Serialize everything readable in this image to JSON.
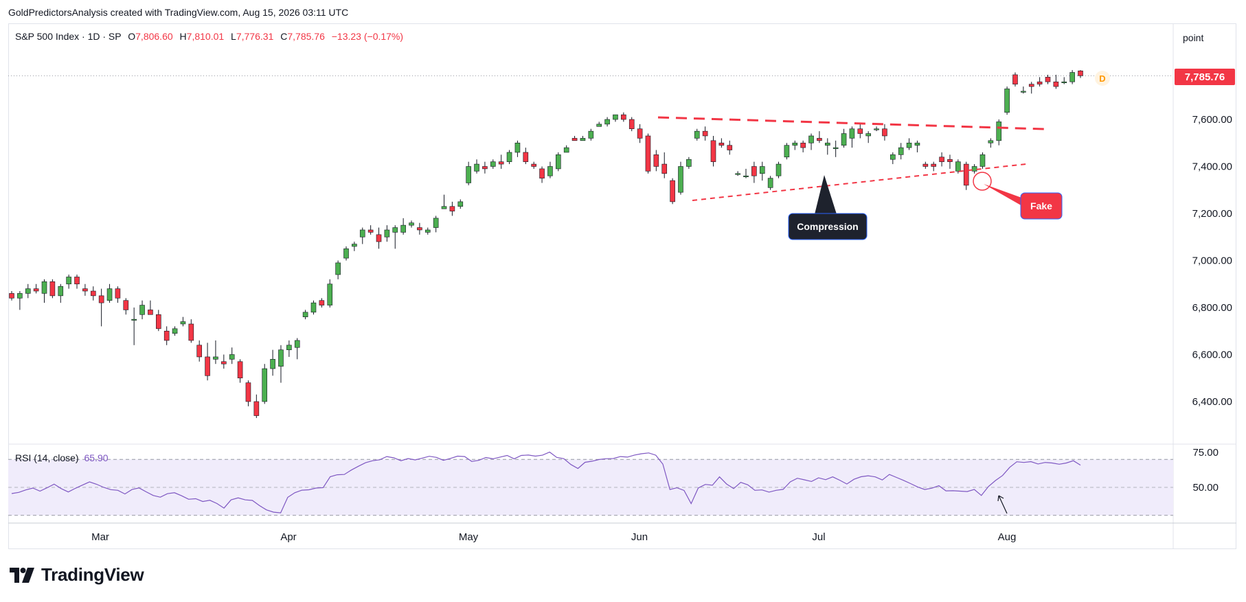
{
  "attribution": "GoldPredictorsAnalysis created with TradingView.com, Aug 15, 2026 03:11 UTC",
  "legend": {
    "symbol": "S&P 500 Index · 1D · SP",
    "open_label": "O",
    "open": "7,806.60",
    "high_label": "H",
    "high": "7,810.01",
    "low_label": "L",
    "low": "7,776.31",
    "close_label": "C",
    "close": "7,785.76",
    "change": "−13.23 (−0.17%)"
  },
  "scale_mode": "point",
  "last_price_label": "7,785.76",
  "colors": {
    "up": "#4caf50",
    "down": "#f23645",
    "resistance": "#f23645",
    "rsi": "#7e57c2",
    "rsi_band": "#f0ecfb"
  },
  "logo_text": "TradingView",
  "annotations": {
    "compression": "Compression",
    "fake": "Fake",
    "dividend_marker": "D"
  },
  "rsi": {
    "label": "RSI (14, close)",
    "value": "65.90",
    "levels": [
      70,
      50,
      30
    ],
    "tick_labels": [
      "75.00",
      "50.00"
    ]
  },
  "chart_data": [
    {
      "type": "candlestick",
      "title": "S&P 500 Index · 1D · SP",
      "x_tick_labels": [
        "Mar",
        "Apr",
        "May",
        "Jun",
        "Jul",
        "Aug"
      ],
      "y_tick_labels": [
        "7,600.00",
        "7,400.00",
        "7,200.00",
        "7,000.00",
        "6,800.00",
        "6,600.00",
        "6,400.00"
      ],
      "y_ticks": [
        7600,
        7400,
        7200,
        7000,
        6800,
        6600,
        6400
      ],
      "ylim": [
        6240,
        7960
      ],
      "grid": false,
      "x_axis": "trading days (index), Feb 19 – Aug 14, 2026",
      "candles": [
        [
          6860,
          6870,
          6830,
          6840
        ],
        [
          6840,
          6870,
          6790,
          6860
        ],
        [
          6860,
          6900,
          6840,
          6880
        ],
        [
          6880,
          6900,
          6860,
          6870
        ],
        [
          6860,
          6920,
          6820,
          6910
        ],
        [
          6910,
          6920,
          6840,
          6850
        ],
        [
          6850,
          6900,
          6820,
          6890
        ],
        [
          6900,
          6940,
          6880,
          6930
        ],
        [
          6930,
          6940,
          6880,
          6900
        ],
        [
          6880,
          6900,
          6850,
          6870
        ],
        [
          6870,
          6890,
          6830,
          6850
        ],
        [
          6850,
          6880,
          6720,
          6820
        ],
        [
          6830,
          6900,
          6820,
          6880
        ],
        [
          6880,
          6890,
          6820,
          6840
        ],
        [
          6830,
          6840,
          6770,
          6790
        ],
        [
          6750,
          6800,
          6640,
          6750
        ],
        [
          6770,
          6830,
          6750,
          6810
        ],
        [
          6790,
          6830,
          6780,
          6770
        ],
        [
          6770,
          6790,
          6700,
          6710
        ],
        [
          6700,
          6720,
          6640,
          6660
        ],
        [
          6690,
          6720,
          6680,
          6710
        ],
        [
          6730,
          6760,
          6720,
          6740
        ],
        [
          6730,
          6750,
          6650,
          6660
        ],
        [
          6640,
          6660,
          6570,
          6590
        ],
        [
          6590,
          6650,
          6490,
          6510
        ],
        [
          6580,
          6660,
          6560,
          6590
        ],
        [
          6570,
          6600,
          6540,
          6560
        ],
        [
          6580,
          6630,
          6560,
          6600
        ],
        [
          6570,
          6580,
          6480,
          6500
        ],
        [
          6480,
          6490,
          6380,
          6400
        ],
        [
          6400,
          6430,
          6330,
          6340
        ],
        [
          6400,
          6560,
          6390,
          6540
        ],
        [
          6540,
          6620,
          6510,
          6580
        ],
        [
          6550,
          6640,
          6480,
          6620
        ],
        [
          6620,
          6660,
          6590,
          6640
        ],
        [
          6630,
          6670,
          6580,
          6660
        ],
        [
          6760,
          6790,
          6750,
          6780
        ],
        [
          6780,
          6830,
          6770,
          6820
        ],
        [
          6830,
          6840,
          6800,
          6810
        ],
        [
          6810,
          6920,
          6800,
          6900
        ],
        [
          6940,
          7000,
          6920,
          6990
        ],
        [
          7010,
          7060,
          7000,
          7050
        ],
        [
          7060,
          7080,
          7040,
          7070
        ],
        [
          7100,
          7140,
          7070,
          7130
        ],
        [
          7130,
          7150,
          7110,
          7120
        ],
        [
          7110,
          7140,
          7050,
          7080
        ],
        [
          7100,
          7150,
          7080,
          7130
        ],
        [
          7120,
          7150,
          7050,
          7140
        ],
        [
          7120,
          7180,
          7110,
          7150
        ],
        [
          7150,
          7170,
          7140,
          7160
        ],
        [
          7140,
          7160,
          7110,
          7130
        ],
        [
          7120,
          7140,
          7110,
          7130
        ],
        [
          7140,
          7190,
          7120,
          7180
        ],
        [
          7220,
          7280,
          7220,
          7230
        ],
        [
          7230,
          7250,
          7190,
          7210
        ],
        [
          7230,
          7260,
          7220,
          7250
        ],
        [
          7330,
          7420,
          7320,
          7400
        ],
        [
          7380,
          7430,
          7370,
          7410
        ],
        [
          7400,
          7420,
          7370,
          7390
        ],
        [
          7400,
          7430,
          7390,
          7420
        ],
        [
          7420,
          7450,
          7390,
          7410
        ],
        [
          7420,
          7470,
          7410,
          7460
        ],
        [
          7460,
          7510,
          7440,
          7500
        ],
        [
          7460,
          7480,
          7410,
          7420
        ],
        [
          7410,
          7420,
          7390,
          7400
        ],
        [
          7390,
          7400,
          7330,
          7350
        ],
        [
          7360,
          7420,
          7350,
          7400
        ],
        [
          7390,
          7460,
          7380,
          7450
        ],
        [
          7460,
          7490,
          7460,
          7480
        ],
        [
          7520,
          7530,
          7510,
          7510
        ],
        [
          7510,
          7530,
          7510,
          7520
        ],
        [
          7520,
          7560,
          7510,
          7550
        ],
        [
          7570,
          7590,
          7570,
          7580
        ],
        [
          7580,
          7610,
          7570,
          7600
        ],
        [
          7600,
          7620,
          7590,
          7620
        ],
        [
          7620,
          7630,
          7590,
          7600
        ],
        [
          7600,
          7610,
          7550,
          7560
        ],
        [
          7560,
          7580,
          7500,
          7520
        ],
        [
          7530,
          7540,
          7370,
          7380
        ],
        [
          7450,
          7470,
          7380,
          7400
        ],
        [
          7410,
          7460,
          7350,
          7370
        ],
        [
          7340,
          7350,
          7240,
          7250
        ],
        [
          7290,
          7420,
          7280,
          7400
        ],
        [
          7400,
          7440,
          7390,
          7430
        ],
        [
          7520,
          7560,
          7510,
          7550
        ],
        [
          7550,
          7570,
          7510,
          7530
        ],
        [
          7510,
          7530,
          7400,
          7420
        ],
        [
          7500,
          7520,
          7480,
          7490
        ],
        [
          7490,
          7510,
          7450,
          7470
        ],
        [
          7370,
          7380,
          7360,
          7370
        ],
        [
          7360,
          7390,
          7350,
          7360
        ],
        [
          7400,
          7420,
          7330,
          7360
        ],
        [
          7370,
          7420,
          7340,
          7400
        ],
        [
          7310,
          7360,
          7300,
          7350
        ],
        [
          7360,
          7420,
          7350,
          7410
        ],
        [
          7440,
          7500,
          7430,
          7490
        ],
        [
          7490,
          7510,
          7470,
          7500
        ],
        [
          7500,
          7510,
          7460,
          7480
        ],
        [
          7500,
          7540,
          7470,
          7530
        ],
        [
          7520,
          7550,
          7500,
          7510
        ],
        [
          7490,
          7520,
          7450,
          7500
        ],
        [
          7480,
          7510,
          7440,
          7480
        ],
        [
          7490,
          7560,
          7480,
          7540
        ],
        [
          7520,
          7570,
          7480,
          7560
        ],
        [
          7560,
          7580,
          7520,
          7540
        ],
        [
          7530,
          7550,
          7500,
          7540
        ],
        [
          7560,
          7570,
          7550,
          7560
        ],
        [
          7560,
          7580,
          7510,
          7530
        ],
        [
          7430,
          7460,
          7410,
          7450
        ],
        [
          7450,
          7500,
          7430,
          7480
        ],
        [
          7480,
          7520,
          7470,
          7500
        ],
        [
          7490,
          7510,
          7460,
          7500
        ],
        [
          7410,
          7420,
          7390,
          7400
        ],
        [
          7410,
          7420,
          7380,
          7400
        ],
        [
          7440,
          7460,
          7400,
          7420
        ],
        [
          7430,
          7450,
          7390,
          7420
        ],
        [
          7380,
          7430,
          7370,
          7420
        ],
        [
          7410,
          7420,
          7300,
          7320
        ],
        [
          7380,
          7410,
          7370,
          7400
        ],
        [
          7400,
          7460,
          7390,
          7450
        ],
        [
          7500,
          7520,
          7480,
          7510
        ],
        [
          7510,
          7600,
          7490,
          7590
        ],
        [
          7630,
          7740,
          7620,
          7730
        ],
        [
          7790,
          7800,
          7740,
          7750
        ],
        [
          7720,
          7740,
          7710,
          7720
        ],
        [
          7750,
          7760,
          7710,
          7740
        ],
        [
          7760,
          7780,
          7740,
          7750
        ],
        [
          7780,
          7790,
          7750,
          7760
        ],
        [
          7760,
          7790,
          7730,
          7740
        ],
        [
          7760,
          7780,
          7750,
          7760
        ],
        [
          7760,
          7810,
          7750,
          7800
        ],
        [
          7806.6,
          7810.01,
          7776.31,
          7785.76
        ]
      ]
    },
    {
      "type": "line",
      "title": "RSI (14, close)",
      "y_tick_labels": [
        "75.00",
        "50.00"
      ],
      "ylim": [
        27,
        77
      ],
      "series": [
        {
          "values": [
            45.6,
            46.4,
            48.2,
            49.5,
            47.3,
            49.7,
            52.3,
            49.1,
            46.7,
            49.3,
            51.6,
            53.9,
            52.2,
            50.0,
            48.4,
            47.9,
            45.3,
            48.5,
            49.6,
            46.8,
            44.2,
            43.0,
            45.5,
            46.2,
            44.0,
            41.5,
            41.9,
            39.9,
            40.8,
            38.5,
            35.2,
            41.1,
            42.5,
            41.1,
            40.7,
            37.0,
            33.9,
            32.3,
            31.8,
            42.9,
            46.2,
            48.0,
            48.3,
            49.5,
            49.8,
            57.6,
            59.0,
            59.2,
            62.4,
            65.1,
            67.6,
            69.0,
            69.7,
            72.0,
            71.1,
            69.0,
            70.6,
            69.6,
            70.9,
            72.2,
            71.4,
            69.3,
            70.7,
            72.3,
            72.0,
            68.5,
            69.3,
            71.3,
            70.4,
            71.6,
            72.8,
            70.4,
            72.8,
            73.1,
            72.3,
            73.0,
            75.2,
            71.4,
            70.5,
            66.3,
            63.5,
            67.9,
            68.7,
            69.9,
            70.5,
            70.6,
            72.0,
            71.6,
            73.1,
            74.0,
            74.6,
            73.0,
            66.6,
            48.5,
            49.7,
            47.8,
            38.4,
            49.5,
            52.1,
            51.5,
            57.5,
            52.4,
            49.1,
            53.6,
            51.8,
            47.9,
            48.2,
            46.6,
            47.9,
            48.6,
            53.9,
            56.5,
            55.4,
            54.2,
            56.8,
            55.5,
            57.5,
            55.1,
            52.4,
            55.8,
            57.6,
            58.3,
            57.5,
            55.3,
            59.2,
            57.1,
            55.0,
            52.7,
            50.3,
            48.5,
            49.4,
            51.2,
            47.5,
            47.6,
            47.3,
            47.0,
            48.5,
            44.2,
            50.6,
            54.9,
            58.5,
            64.3,
            68.3,
            67.8,
            68.4,
            66.7,
            67.8,
            67.4,
            66.5,
            67.4,
            69.0,
            65.9
          ]
        }
      ]
    }
  ]
}
